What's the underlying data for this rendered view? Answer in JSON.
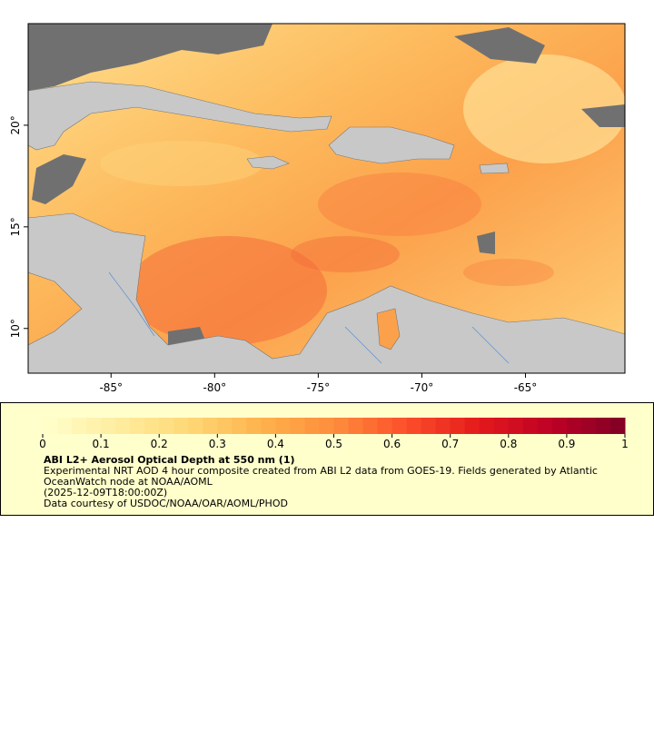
{
  "map": {
    "xlim": [
      -89,
      -60.2
    ],
    "ylim": [
      7.8,
      25
    ],
    "xticks": [
      {
        "value": -85,
        "label": "-85°"
      },
      {
        "value": -80,
        "label": "-80°"
      },
      {
        "value": -75,
        "label": "-75°"
      },
      {
        "value": -70,
        "label": "-70°"
      },
      {
        "value": -65,
        "label": "-65°"
      }
    ],
    "yticks": [
      {
        "value": 10,
        "label": "10°"
      },
      {
        "value": 15,
        "label": "15°"
      },
      {
        "value": 20,
        "label": "20°"
      }
    ]
  },
  "colorbar": {
    "lim": [
      0,
      1
    ],
    "ticks": [
      0,
      0.1,
      0.2,
      0.3,
      0.4,
      0.5,
      0.6,
      0.7,
      0.8,
      0.9,
      1
    ],
    "colors": [
      "#ffffcc",
      "#ffeda0",
      "#fed976",
      "#feb24c",
      "#fd8d3c",
      "#fc4e2a",
      "#e31a1c",
      "#bd0026",
      "#800026"
    ]
  },
  "legend": {
    "title": "ABI L2+ Aerosol Optical Depth at 550 nm (1)",
    "lines": [
      "Experimental NRT AOD 4 hour composite created from ABI L2 data from GOES-19. Fields generated by Atlantic",
      "OceanWatch node at NOAA/AOML",
      "(2025-12-09T18:00:00Z)",
      "Data courtesy of USDOC/NOAA/OAR/AOML/PHOD"
    ]
  }
}
